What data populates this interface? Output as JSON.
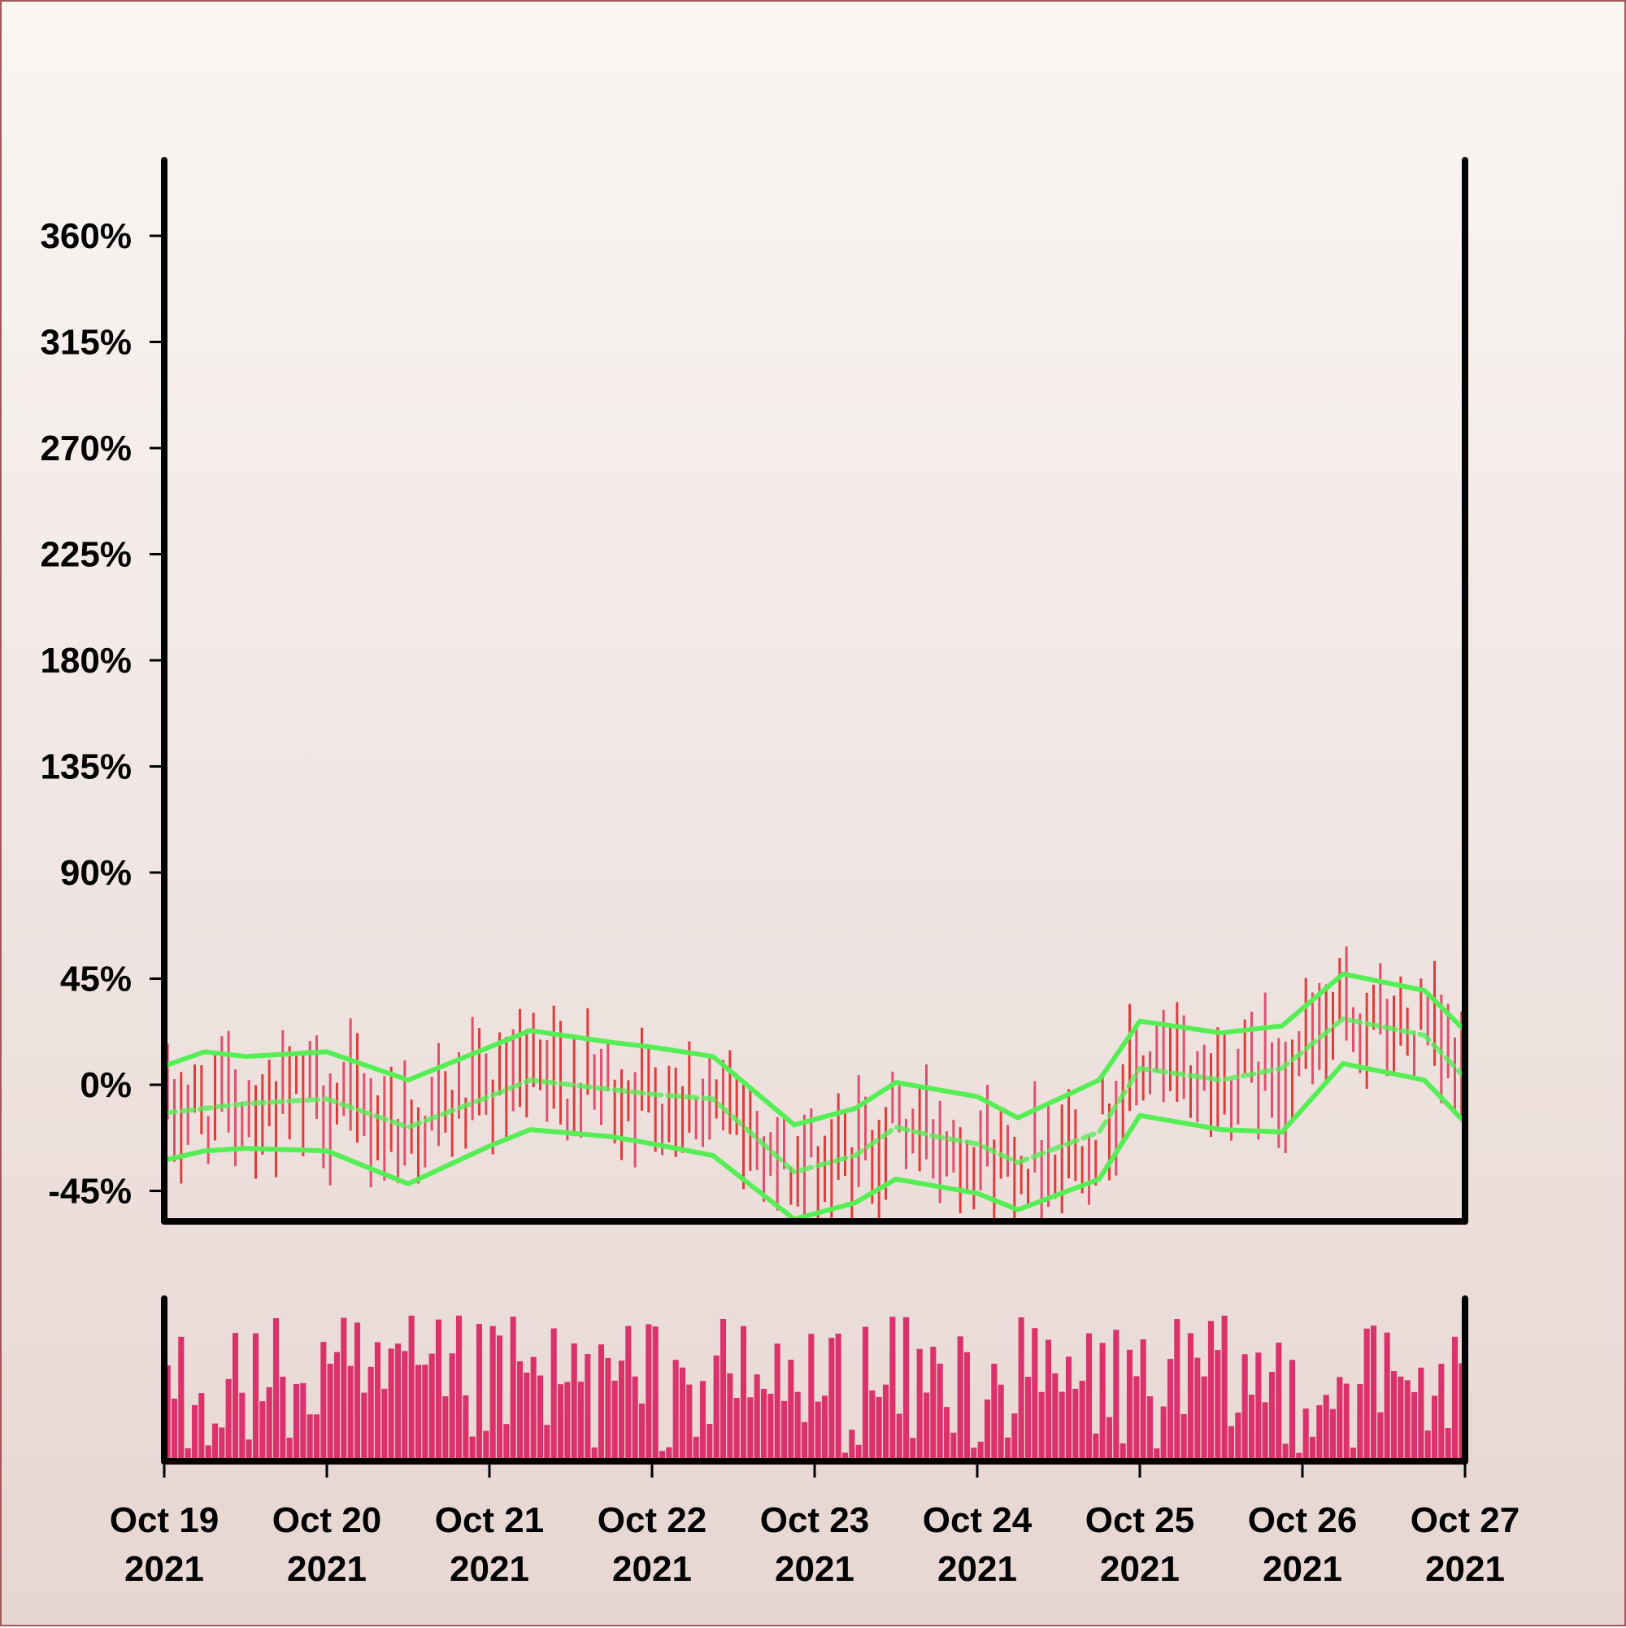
{
  "chart_data": {
    "type": "ohlc",
    "title": "",
    "xlabel": "",
    "ylabel": "",
    "ylim": [
      -50,
      400
    ],
    "y_ticks": [
      -45,
      0,
      45,
      90,
      135,
      180,
      225,
      270,
      315,
      360
    ],
    "y_tick_labels": [
      "-45%",
      "0%",
      "45%",
      "90%",
      "135%",
      "180%",
      "225%",
      "270%",
      "315%",
      "360%"
    ],
    "x_range": [
      "2021-10-19",
      "2021-10-27"
    ],
    "x_ticks": [
      {
        "date": "2021-10-19",
        "label_line1": "Oct 19",
        "label_line2": "2021"
      },
      {
        "date": "2021-10-20",
        "label_line1": "Oct 20",
        "label_line2": "2021"
      },
      {
        "date": "2021-10-21",
        "label_line1": "Oct 21",
        "label_line2": "2021"
      },
      {
        "date": "2021-10-22",
        "label_line1": "Oct 22",
        "label_line2": "2021"
      },
      {
        "date": "2021-10-23",
        "label_line1": "Oct 23",
        "label_line2": "2021"
      },
      {
        "date": "2021-10-24",
        "label_line1": "Oct 24",
        "label_line2": "2021"
      },
      {
        "date": "2021-10-25",
        "label_line1": "Oct 25",
        "label_line2": "2021"
      },
      {
        "date": "2021-10-26",
        "label_line1": "Oct 26",
        "label_line2": "2021"
      },
      {
        "date": "2021-10-27",
        "label_line1": "Oct 27",
        "label_line2": "2021"
      }
    ],
    "grid": false,
    "legend": "none",
    "series": [
      {
        "kind": "moving_average_middle",
        "style": "dashed",
        "values": [
          [
            "2021-10-19",
            -12
          ],
          [
            "2021-10-19 12:00",
            -8
          ],
          [
            "2021-10-20",
            -6
          ],
          [
            "2021-10-20 12:00",
            -18
          ],
          [
            "2021-10-21",
            -5
          ],
          [
            "2021-10-21 06:00",
            2
          ],
          [
            "2021-10-21 18:00",
            -2
          ],
          [
            "2021-10-22",
            -4
          ],
          [
            "2021-10-22 09:00",
            -6
          ],
          [
            "2021-10-22 21:00",
            -37
          ],
          [
            "2021-10-23 06:00",
            -30
          ],
          [
            "2021-10-23 12:00",
            -18
          ],
          [
            "2021-10-23 18:00",
            -22
          ],
          [
            "2021-10-24",
            -25
          ],
          [
            "2021-10-24 06:00",
            -33
          ],
          [
            "2021-10-24 18:00",
            -20
          ],
          [
            "2021-10-25",
            7
          ],
          [
            "2021-10-25 12:00",
            2
          ],
          [
            "2021-10-25 21:00",
            7
          ],
          [
            "2021-10-26 06:00",
            28
          ],
          [
            "2021-10-26 18:00",
            21
          ],
          [
            "2021-10-27",
            3
          ]
        ]
      },
      {
        "kind": "upper_band",
        "style": "solid",
        "values": [
          [
            "2021-10-19",
            8
          ],
          [
            "2021-10-19 06:00",
            14
          ],
          [
            "2021-10-19 12:00",
            12
          ],
          [
            "2021-10-20",
            14
          ],
          [
            "2021-10-20 12:00",
            2
          ],
          [
            "2021-10-21",
            16
          ],
          [
            "2021-10-21 06:00",
            23
          ],
          [
            "2021-10-21 18:00",
            18
          ],
          [
            "2021-10-22",
            16
          ],
          [
            "2021-10-22 09:00",
            12
          ],
          [
            "2021-10-22 21:00",
            -17
          ],
          [
            "2021-10-23 06:00",
            -10
          ],
          [
            "2021-10-23 12:00",
            1
          ],
          [
            "2021-10-23 18:00",
            -2
          ],
          [
            "2021-10-24",
            -5
          ],
          [
            "2021-10-24 06:00",
            -14
          ],
          [
            "2021-10-24 18:00",
            2
          ],
          [
            "2021-10-25",
            27
          ],
          [
            "2021-10-25 12:00",
            22
          ],
          [
            "2021-10-25 21:00",
            25
          ],
          [
            "2021-10-26 06:00",
            47
          ],
          [
            "2021-10-26 18:00",
            40
          ],
          [
            "2021-10-27",
            23
          ]
        ]
      },
      {
        "kind": "lower_band",
        "style": "solid",
        "values": [
          [
            "2021-10-19",
            -32
          ],
          [
            "2021-10-19 06:00",
            -28
          ],
          [
            "2021-10-19 12:00",
            -27
          ],
          [
            "2021-10-20",
            -28
          ],
          [
            "2021-10-20 12:00",
            -42
          ],
          [
            "2021-10-21",
            -26
          ],
          [
            "2021-10-21 06:00",
            -19
          ],
          [
            "2021-10-21 18:00",
            -22
          ],
          [
            "2021-10-22",
            -25
          ],
          [
            "2021-10-22 09:00",
            -30
          ],
          [
            "2021-10-22 21:00",
            -57
          ],
          [
            "2021-10-23 06:00",
            -50
          ],
          [
            "2021-10-23 12:00",
            -40
          ],
          [
            "2021-10-23 18:00",
            -43
          ],
          [
            "2021-10-24",
            -46
          ],
          [
            "2021-10-24 06:00",
            -53
          ],
          [
            "2021-10-24 18:00",
            -40
          ],
          [
            "2021-10-25",
            -13
          ],
          [
            "2021-10-25 12:00",
            -19
          ],
          [
            "2021-10-25 21:00",
            -20
          ],
          [
            "2021-10-26 06:00",
            9
          ],
          [
            "2021-10-26 18:00",
            2
          ],
          [
            "2021-10-27",
            -16
          ]
        ]
      }
    ],
    "price_bars": {
      "count": 192,
      "period": "hourly",
      "value_range_percent": [
        -56,
        58
      ],
      "note": "individual bar values are not labeled in the image; bars follow the moving-average path"
    },
    "volume_bars": {
      "count": 192,
      "ylim": [
        0,
        1
      ],
      "axis_labels_shown": false
    },
    "colors": {
      "up_bar": "#e0506a",
      "down_bar": "#e33b3b",
      "volume_bar": "#dc326b",
      "band_line": "#55ee55",
      "axis": "#000000",
      "background_top": "#f9f6f4",
      "background_bottom": "#e7d6d2"
    }
  }
}
